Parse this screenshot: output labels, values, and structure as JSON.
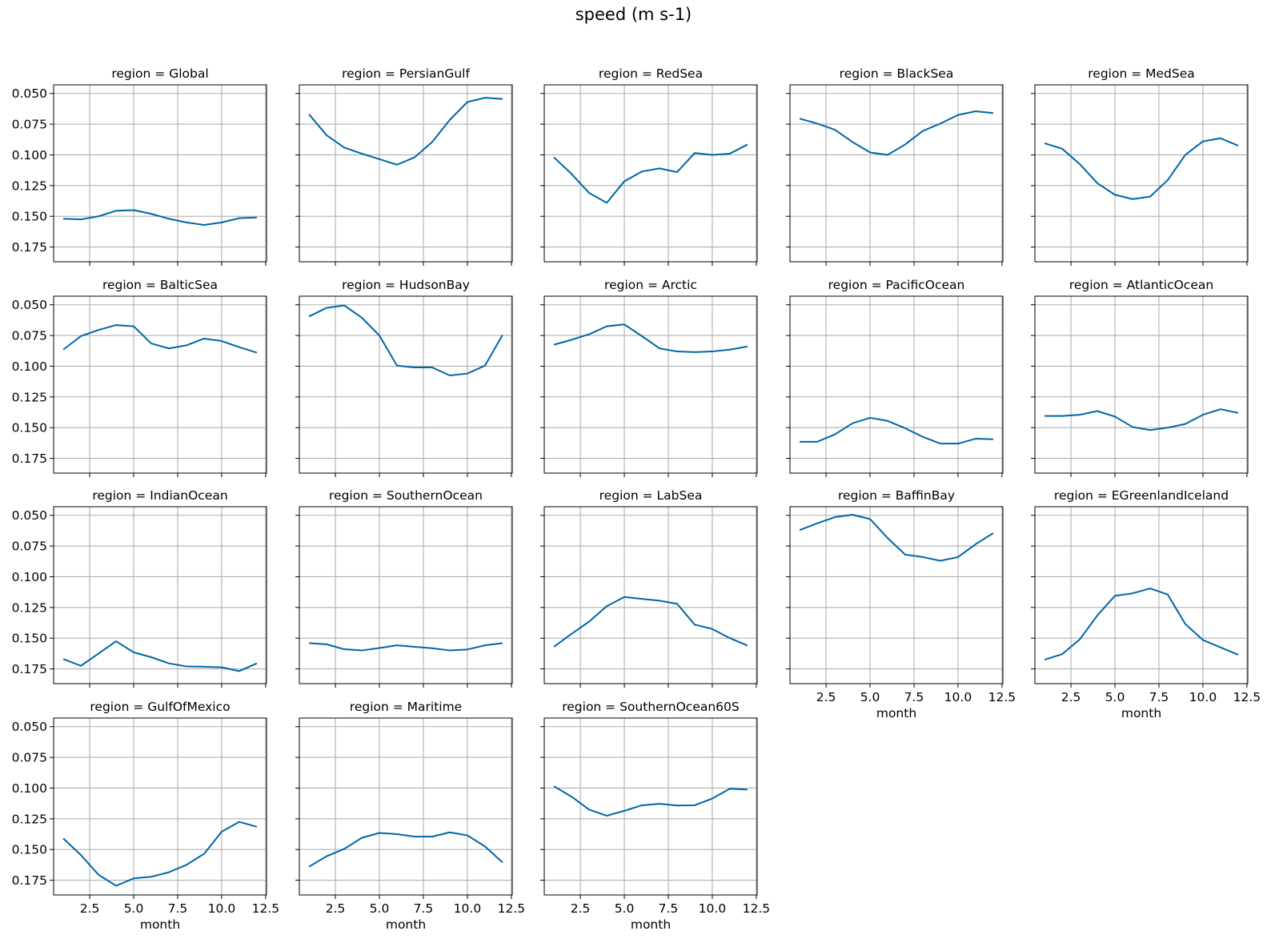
{
  "figure": {
    "title": "speed (m s-1)",
    "xlabel": "month",
    "line_color": "#0066a8",
    "grid_color": "#b0b0b0"
  },
  "chart_data": {
    "type": "line",
    "title": "speed (m s-1)",
    "xlabel": "month",
    "ylabel": "",
    "xlim": [
      0.45,
      12.55
    ],
    "ylim": [
      0.187,
      0.043
    ],
    "y_inverted": true,
    "grid": true,
    "xticks": [
      2.5,
      5.0,
      7.5,
      10.0,
      12.5
    ],
    "yticks": [
      0.05,
      0.075,
      0.1,
      0.125,
      0.15,
      0.175
    ],
    "xtick_labels": [
      "2.5",
      "5.0",
      "7.5",
      "10.0",
      "12.5"
    ],
    "ytick_labels": [
      "0.050",
      "0.075",
      "0.100",
      "0.125",
      "0.150",
      "0.175"
    ],
    "x": [
      1,
      2,
      3,
      4,
      5,
      6,
      7,
      8,
      9,
      10,
      11,
      12
    ],
    "panels": [
      {
        "title": "region = Global",
        "values": [
          0.152,
          0.1525,
          0.15,
          0.1455,
          0.145,
          0.148,
          0.152,
          0.155,
          0.157,
          0.155,
          0.1515,
          0.151
        ]
      },
      {
        "title": "region = PersianGulf",
        "values": [
          0.067,
          0.084,
          0.094,
          0.099,
          0.1035,
          0.108,
          0.102,
          0.0895,
          0.0715,
          0.057,
          0.0535,
          0.0545
        ]
      },
      {
        "title": "region = RedSea",
        "values": [
          0.102,
          0.1155,
          0.131,
          0.139,
          0.1215,
          0.1135,
          0.111,
          0.114,
          0.0985,
          0.1,
          0.099,
          0.0915
        ]
      },
      {
        "title": "region = BlackSea",
        "values": [
          0.0705,
          0.0745,
          0.0795,
          0.0895,
          0.098,
          0.1,
          0.0915,
          0.0805,
          0.0745,
          0.0675,
          0.0645,
          0.066
        ]
      },
      {
        "title": "region = MedSea",
        "values": [
          0.0905,
          0.095,
          0.1075,
          0.123,
          0.1325,
          0.136,
          0.134,
          0.1205,
          0.1,
          0.089,
          0.0865,
          0.0925
        ]
      },
      {
        "title": "region = BalticSea",
        "values": [
          0.0865,
          0.0755,
          0.0705,
          0.0665,
          0.0675,
          0.0815,
          0.0855,
          0.083,
          0.0775,
          0.0795,
          0.0845,
          0.089
        ]
      },
      {
        "title": "region = HudsonBay",
        "values": [
          0.0595,
          0.0525,
          0.0505,
          0.0605,
          0.075,
          0.0995,
          0.101,
          0.101,
          0.1075,
          0.106,
          0.0995,
          0.0745
        ]
      },
      {
        "title": "region = Arctic",
        "values": [
          0.0825,
          0.0785,
          0.074,
          0.0675,
          0.066,
          0.0755,
          0.0855,
          0.088,
          0.0885,
          0.088,
          0.0865,
          0.084
        ]
      },
      {
        "title": "region = PacificOcean",
        "values": [
          0.1615,
          0.1615,
          0.1555,
          0.1465,
          0.142,
          0.1445,
          0.1505,
          0.1575,
          0.163,
          0.163,
          0.159,
          0.1595
        ]
      },
      {
        "title": "region = AtlanticOcean",
        "values": [
          0.1405,
          0.1405,
          0.1395,
          0.1365,
          0.141,
          0.1495,
          0.152,
          0.15,
          0.147,
          0.1395,
          0.135,
          0.138
        ]
      },
      {
        "title": "region = IndianOcean",
        "values": [
          0.167,
          0.1725,
          0.1625,
          0.1525,
          0.1615,
          0.1655,
          0.1705,
          0.173,
          0.1732,
          0.1737,
          0.1768,
          0.1705
        ]
      },
      {
        "title": "region = SouthernOcean",
        "values": [
          0.154,
          0.155,
          0.159,
          0.16,
          0.158,
          0.1558,
          0.157,
          0.1582,
          0.16,
          0.1592,
          0.1558,
          0.154
        ]
      },
      {
        "title": "region = LabSea",
        "values": [
          0.157,
          0.1465,
          0.1365,
          0.124,
          0.1165,
          0.118,
          0.1195,
          0.122,
          0.139,
          0.1425,
          0.15,
          0.156
        ]
      },
      {
        "title": "region = BaffinBay",
        "values": [
          0.062,
          0.0565,
          0.0515,
          0.0495,
          0.053,
          0.0685,
          0.082,
          0.084,
          0.087,
          0.084,
          0.0735,
          0.0645
        ]
      },
      {
        "title": "region = EGreenlandIceland",
        "values": [
          0.1675,
          0.163,
          0.151,
          0.1315,
          0.1155,
          0.1135,
          0.1095,
          0.1145,
          0.1385,
          0.1515,
          0.1575,
          0.1635
        ]
      },
      {
        "title": "region = GulfOfMexico",
        "values": [
          0.141,
          0.1545,
          0.1705,
          0.1795,
          0.1735,
          0.1722,
          0.1685,
          0.1625,
          0.1535,
          0.1355,
          0.1275,
          0.1315
        ]
      },
      {
        "title": "region = Maritime",
        "values": [
          0.164,
          0.1555,
          0.1495,
          0.1405,
          0.1365,
          0.1375,
          0.1395,
          0.1395,
          0.136,
          0.1385,
          0.1475,
          0.1605
        ]
      },
      {
        "title": "region = SouthernOcean60S",
        "values": [
          0.0985,
          0.107,
          0.1175,
          0.1225,
          0.1185,
          0.114,
          0.1128,
          0.1142,
          0.114,
          0.1085,
          0.1005,
          0.1012
        ]
      }
    ]
  }
}
